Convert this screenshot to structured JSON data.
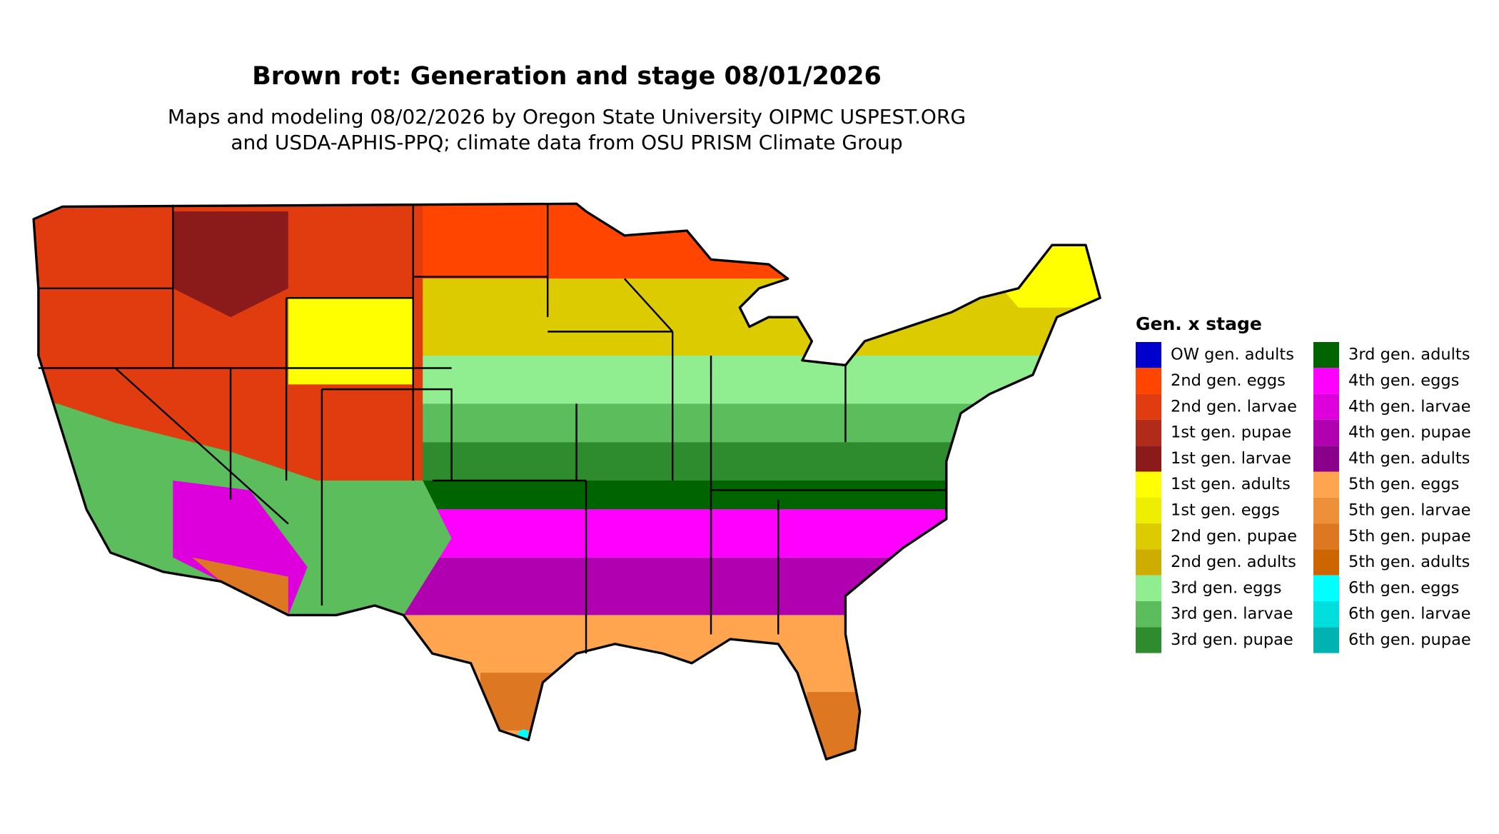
{
  "header": {
    "title": "Brown rot: Generation and stage 08/01/2026",
    "subtitle_lines": [
      "Maps and modeling 08/02/2026 by Oregon State University OIPMC USPEST.ORG",
      "and USDA-APHIS-PPQ; climate data from OSU PRISM Climate Group"
    ]
  },
  "legend": {
    "title": "Gen. x stage",
    "items": [
      {
        "label": "OW gen. adults",
        "color": "#0000cd"
      },
      {
        "label": "2nd gen. eggs",
        "color": "#ff4500"
      },
      {
        "label": "2nd gen. larvae",
        "color": "#e03c10"
      },
      {
        "label": "1st gen. pupae",
        "color": "#b22a1a"
      },
      {
        "label": "1st gen. larvae",
        "color": "#8b1a1a"
      },
      {
        "label": "1st gen. adults",
        "color": "#ffff00"
      },
      {
        "label": "1st gen. eggs",
        "color": "#eeee00"
      },
      {
        "label": "2nd gen. pupae",
        "color": "#dccb00"
      },
      {
        "label": "2nd gen. adults",
        "color": "#ccad00"
      },
      {
        "label": "3rd gen. eggs",
        "color": "#90ee90"
      },
      {
        "label": "3rd gen. larvae",
        "color": "#5cbd5c"
      },
      {
        "label": "3rd gen. pupae",
        "color": "#2e8b2e"
      },
      {
        "label": "3rd gen. adults",
        "color": "#006400"
      },
      {
        "label": "4th gen. eggs",
        "color": "#ff00ff"
      },
      {
        "label": "4th gen. larvae",
        "color": "#dd00dd"
      },
      {
        "label": "4th gen. pupae",
        "color": "#b000b0"
      },
      {
        "label": "4th gen. adults",
        "color": "#8b008b"
      },
      {
        "label": "5th gen. eggs",
        "color": "#ffa54f"
      },
      {
        "label": "5th gen. larvae",
        "color": "#ee8f3a"
      },
      {
        "label": "5th gen. pupae",
        "color": "#dd7722"
      },
      {
        "label": "5th gen. adults",
        "color": "#cd6600"
      },
      {
        "label": "6th gen. eggs",
        "color": "#00ffff"
      },
      {
        "label": "6th gen. larvae",
        "color": "#00dddd"
      },
      {
        "label": "6th gen. pupae",
        "color": "#00b3b3"
      }
    ]
  }
}
